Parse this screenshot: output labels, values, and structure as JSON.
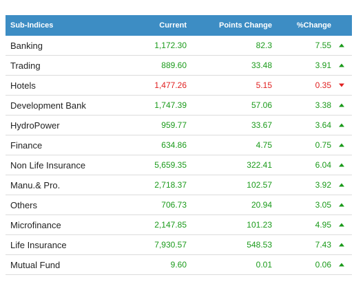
{
  "table": {
    "headers": {
      "name": "Sub-Indices",
      "current": "Current",
      "points_change": "Points Change",
      "pct_change": "%Change"
    },
    "colors": {
      "header_bg": "#3d8dc4",
      "up": "#1a9a1a",
      "down": "#e02020"
    },
    "rows": [
      {
        "name": "Banking",
        "current": "1,172.30",
        "points_change": "82.3",
        "pct_change": "7.55",
        "direction": "up"
      },
      {
        "name": "Trading",
        "current": "889.60",
        "points_change": "33.48",
        "pct_change": "3.91",
        "direction": "up"
      },
      {
        "name": "Hotels",
        "current": "1,477.26",
        "points_change": "5.15",
        "pct_change": "0.35",
        "direction": "down"
      },
      {
        "name": "Development Bank",
        "current": "1,747.39",
        "points_change": "57.06",
        "pct_change": "3.38",
        "direction": "up"
      },
      {
        "name": "HydroPower",
        "current": "959.77",
        "points_change": "33.67",
        "pct_change": "3.64",
        "direction": "up"
      },
      {
        "name": "Finance",
        "current": "634.86",
        "points_change": "4.75",
        "pct_change": "0.75",
        "direction": "up"
      },
      {
        "name": "Non Life Insurance",
        "current": "5,659.35",
        "points_change": "322.41",
        "pct_change": "6.04",
        "direction": "up"
      },
      {
        "name": "Manu.& Pro.",
        "current": "2,718.37",
        "points_change": "102.57",
        "pct_change": "3.92",
        "direction": "up"
      },
      {
        "name": "Others",
        "current": "706.73",
        "points_change": "20.94",
        "pct_change": "3.05",
        "direction": "up"
      },
      {
        "name": "Microfinance",
        "current": "2,147.85",
        "points_change": "101.23",
        "pct_change": "4.95",
        "direction": "up"
      },
      {
        "name": "Life Insurance",
        "current": "7,930.57",
        "points_change": "548.53",
        "pct_change": "7.43",
        "direction": "up"
      },
      {
        "name": "Mutual Fund",
        "current": "9.60",
        "points_change": "0.01",
        "pct_change": "0.06",
        "direction": "up"
      }
    ]
  }
}
